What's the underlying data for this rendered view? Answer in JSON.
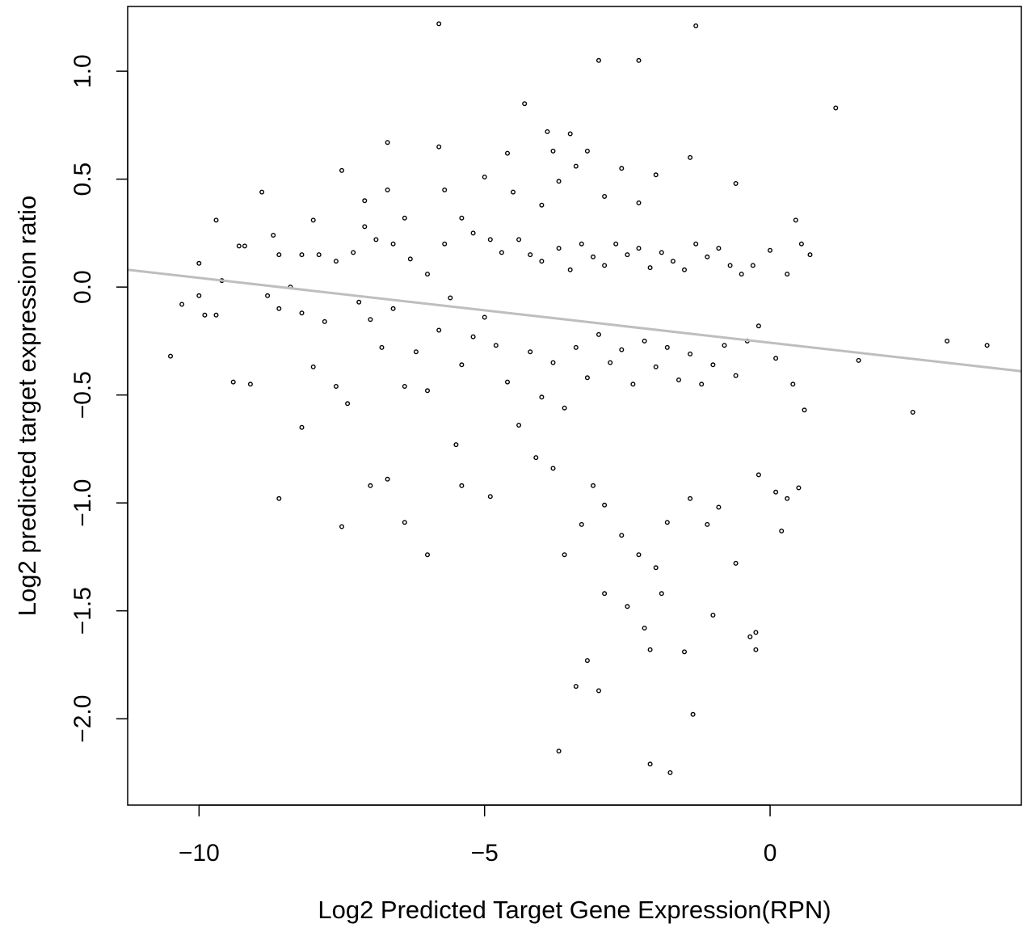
{
  "chart_data": {
    "type": "scatter",
    "title": "",
    "xlabel": "Log2 Predicted Target Gene Expression(RPN)",
    "ylabel": "Log2 predicted target expression ratio",
    "xlim": [
      -11.25,
      4.4
    ],
    "ylim": [
      -2.4,
      1.3
    ],
    "x_ticks": [
      -10,
      -5,
      0
    ],
    "x_tick_labels": [
      "−10",
      "−5",
      "0"
    ],
    "y_ticks": [
      -2.0,
      -1.5,
      -1.0,
      -0.5,
      0.0,
      0.5,
      1.0
    ],
    "y_tick_labels": [
      "−2.0",
      "−1.5",
      "−1.0",
      "−0.5",
      "0.0",
      "0.5",
      "1.0"
    ],
    "grid": false,
    "marker": "open-circle",
    "point_color": "#000000",
    "fit_line": {
      "x": [
        -11.25,
        4.4
      ],
      "y": [
        0.08,
        -0.39
      ],
      "color": "#bebebe"
    },
    "series": [
      {
        "values": [
          [
            -5.8,
            1.22
          ],
          [
            -1.3,
            1.21
          ],
          [
            -3.0,
            1.05
          ],
          [
            -2.3,
            1.05
          ],
          [
            1.15,
            0.83
          ],
          [
            -4.3,
            0.85
          ],
          [
            -6.7,
            0.67
          ],
          [
            -3.9,
            0.72
          ],
          [
            -3.5,
            0.71
          ],
          [
            -5.8,
            0.65
          ],
          [
            -3.8,
            0.63
          ],
          [
            -4.6,
            0.62
          ],
          [
            -3.2,
            0.63
          ],
          [
            -1.4,
            0.6
          ],
          [
            -3.4,
            0.56
          ],
          [
            -2.6,
            0.55
          ],
          [
            -7.5,
            0.54
          ],
          [
            -2.0,
            0.52
          ],
          [
            -5.0,
            0.51
          ],
          [
            -3.7,
            0.49
          ],
          [
            -0.6,
            0.48
          ],
          [
            -5.7,
            0.45
          ],
          [
            -6.7,
            0.45
          ],
          [
            -8.9,
            0.44
          ],
          [
            -4.5,
            0.44
          ],
          [
            -2.9,
            0.42
          ],
          [
            -7.1,
            0.4
          ],
          [
            -2.3,
            0.39
          ],
          [
            -4.0,
            0.38
          ],
          [
            -9.7,
            0.31
          ],
          [
            0.45,
            0.31
          ],
          [
            -8.0,
            0.31
          ],
          [
            -6.4,
            0.32
          ],
          [
            -9.3,
            0.19
          ],
          [
            -9.2,
            0.19
          ],
          [
            -8.7,
            0.24
          ],
          [
            -7.3,
            0.16
          ],
          [
            -10.0,
            0.11
          ],
          [
            -9.6,
            0.03
          ],
          [
            -8.6,
            0.15
          ],
          [
            -8.2,
            0.15
          ],
          [
            -7.9,
            0.15
          ],
          [
            -7.6,
            0.12
          ],
          [
            -7.1,
            0.28
          ],
          [
            -6.9,
            0.22
          ],
          [
            -6.6,
            0.2
          ],
          [
            -6.3,
            0.13
          ],
          [
            -6.0,
            0.06
          ],
          [
            -5.7,
            0.2
          ],
          [
            -5.4,
            0.32
          ],
          [
            -5.2,
            0.25
          ],
          [
            -4.9,
            0.22
          ],
          [
            -4.7,
            0.16
          ],
          [
            -4.4,
            0.22
          ],
          [
            -4.2,
            0.15
          ],
          [
            -4.0,
            0.12
          ],
          [
            -3.7,
            0.18
          ],
          [
            -3.5,
            0.08
          ],
          [
            -3.3,
            0.2
          ],
          [
            -3.1,
            0.14
          ],
          [
            -2.9,
            0.1
          ],
          [
            -2.7,
            0.2
          ],
          [
            -2.5,
            0.15
          ],
          [
            -2.3,
            0.18
          ],
          [
            -2.1,
            0.09
          ],
          [
            -1.9,
            0.16
          ],
          [
            -1.7,
            0.12
          ],
          [
            -1.5,
            0.08
          ],
          [
            -1.3,
            0.2
          ],
          [
            -1.1,
            0.14
          ],
          [
            -0.9,
            0.18
          ],
          [
            -0.7,
            0.1
          ],
          [
            -0.5,
            0.06
          ],
          [
            -0.3,
            0.1
          ],
          [
            0.0,
            0.17
          ],
          [
            0.3,
            0.06
          ],
          [
            0.55,
            0.2
          ],
          [
            0.7,
            0.15
          ],
          [
            -10.3,
            -0.08
          ],
          [
            -10.0,
            -0.04
          ],
          [
            -9.9,
            -0.13
          ],
          [
            -9.7,
            -0.13
          ],
          [
            -9.4,
            -0.44
          ],
          [
            -9.1,
            -0.45
          ],
          [
            -10.5,
            -0.32
          ],
          [
            -8.8,
            -0.04
          ],
          [
            -8.6,
            -0.1
          ],
          [
            -8.4,
            0.0
          ],
          [
            -8.2,
            -0.12
          ],
          [
            -8.0,
            -0.37
          ],
          [
            -7.8,
            -0.16
          ],
          [
            -7.6,
            -0.46
          ],
          [
            -7.4,
            -0.54
          ],
          [
            -7.2,
            -0.07
          ],
          [
            -7.0,
            -0.15
          ],
          [
            -6.8,
            -0.28
          ],
          [
            -6.6,
            -0.1
          ],
          [
            -6.4,
            -0.46
          ],
          [
            -6.2,
            -0.3
          ],
          [
            -6.0,
            -0.48
          ],
          [
            -5.8,
            -0.2
          ],
          [
            -5.6,
            -0.05
          ],
          [
            -5.4,
            -0.36
          ],
          [
            -5.2,
            -0.23
          ],
          [
            -5.0,
            -0.14
          ],
          [
            -4.8,
            -0.27
          ],
          [
            -4.6,
            -0.44
          ],
          [
            -4.4,
            -0.64
          ],
          [
            -4.2,
            -0.3
          ],
          [
            -4.0,
            -0.51
          ],
          [
            -3.8,
            -0.35
          ],
          [
            -3.6,
            -0.56
          ],
          [
            -3.4,
            -0.28
          ],
          [
            -3.2,
            -0.42
          ],
          [
            -3.0,
            -0.22
          ],
          [
            -2.8,
            -0.35
          ],
          [
            -2.6,
            -0.29
          ],
          [
            -2.4,
            -0.45
          ],
          [
            -2.2,
            -0.25
          ],
          [
            -2.0,
            -0.37
          ],
          [
            -1.8,
            -0.28
          ],
          [
            -1.6,
            -0.43
          ],
          [
            -1.4,
            -0.31
          ],
          [
            -1.2,
            -0.45
          ],
          [
            -1.0,
            -0.36
          ],
          [
            -0.8,
            -0.27
          ],
          [
            -0.6,
            -0.41
          ],
          [
            -0.4,
            -0.25
          ],
          [
            -0.2,
            -0.18
          ],
          [
            0.1,
            -0.33
          ],
          [
            0.4,
            -0.45
          ],
          [
            0.6,
            -0.57
          ],
          [
            1.55,
            -0.34
          ],
          [
            2.5,
            -0.58
          ],
          [
            3.1,
            -0.25
          ],
          [
            3.8,
            -0.27
          ],
          [
            -8.6,
            -0.98
          ],
          [
            -8.2,
            -0.65
          ],
          [
            -7.5,
            -1.11
          ],
          [
            -7.0,
            -0.92
          ],
          [
            -6.4,
            -1.09
          ],
          [
            -6.7,
            -0.89
          ],
          [
            -6.0,
            -1.24
          ],
          [
            -5.5,
            -0.73
          ],
          [
            -5.4,
            -0.92
          ],
          [
            -4.9,
            -0.97
          ],
          [
            -4.1,
            -0.79
          ],
          [
            -3.8,
            -0.84
          ],
          [
            -3.3,
            -1.1
          ],
          [
            -3.1,
            -0.92
          ],
          [
            -2.9,
            -1.01
          ],
          [
            -2.6,
            -1.15
          ],
          [
            -2.3,
            -1.24
          ],
          [
            -2.0,
            -1.3
          ],
          [
            -1.8,
            -1.09
          ],
          [
            -1.4,
            -0.98
          ],
          [
            -1.1,
            -1.1
          ],
          [
            -0.9,
            -1.02
          ],
          [
            -0.6,
            -1.28
          ],
          [
            -0.2,
            -0.87
          ],
          [
            0.1,
            -0.95
          ],
          [
            0.3,
            -0.98
          ],
          [
            0.5,
            -0.93
          ],
          [
            0.2,
            -1.13
          ],
          [
            -3.6,
            -1.24
          ],
          [
            -2.9,
            -1.42
          ],
          [
            -2.5,
            -1.48
          ],
          [
            -2.2,
            -1.58
          ],
          [
            -1.9,
            -1.42
          ],
          [
            -1.5,
            -1.69
          ],
          [
            -1.0,
            -1.52
          ],
          [
            -0.35,
            -1.62
          ],
          [
            -0.25,
            -1.6
          ],
          [
            -0.25,
            -1.68
          ],
          [
            -3.2,
            -1.73
          ],
          [
            -3.4,
            -1.85
          ],
          [
            -3.0,
            -1.87
          ],
          [
            -2.1,
            -1.68
          ],
          [
            -1.35,
            -1.98
          ],
          [
            -3.7,
            -2.15
          ],
          [
            -2.1,
            -2.21
          ],
          [
            -1.75,
            -2.25
          ]
        ]
      }
    ]
  }
}
